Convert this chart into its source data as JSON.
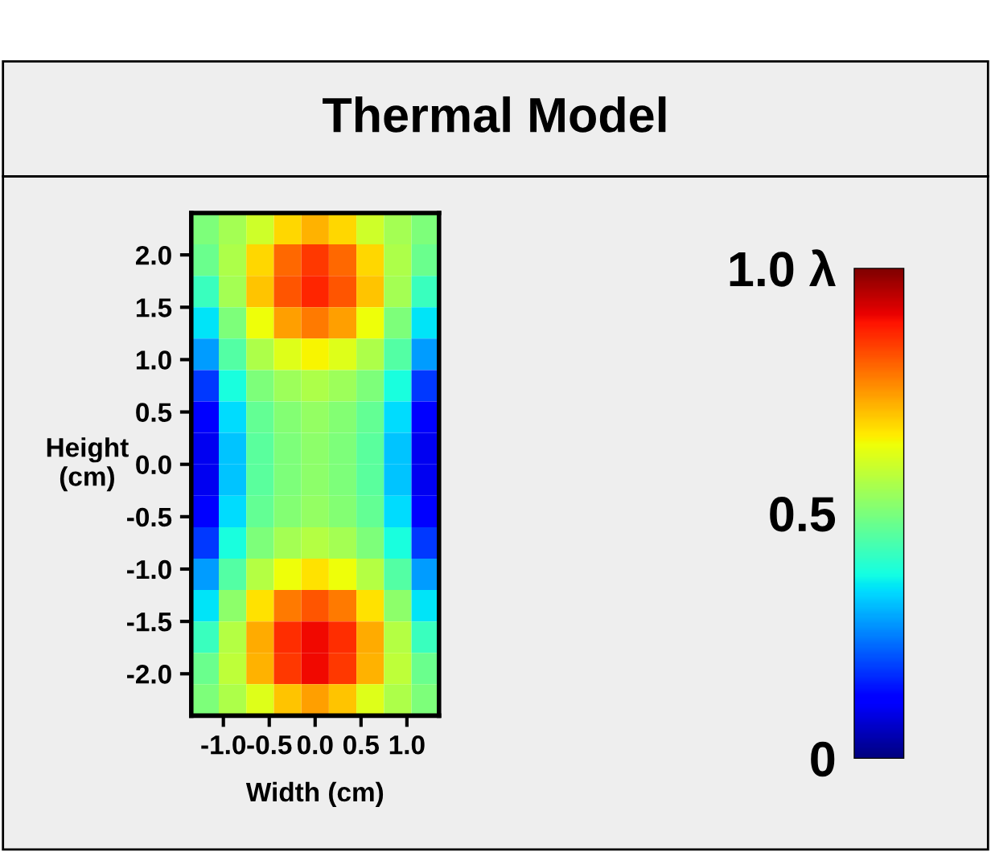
{
  "chart_data": {
    "type": "heatmap",
    "title": "Thermal Model",
    "xlabel": "Width (cm)",
    "ylabel": "Height\n(cm)",
    "x": [
      -1.2,
      -0.9,
      -0.6,
      -0.3,
      0.0,
      0.3,
      0.6,
      0.9,
      1.2
    ],
    "y": [
      2.25,
      1.95,
      1.65,
      1.35,
      1.05,
      0.75,
      0.45,
      0.15,
      -0.15,
      -0.45,
      -0.75,
      -1.05,
      -1.35,
      -1.65,
      -1.95,
      -2.25
    ],
    "cells": [
      [
        0.5,
        0.55,
        0.6,
        0.68,
        0.72,
        0.68,
        0.6,
        0.55,
        0.5
      ],
      [
        0.48,
        0.56,
        0.68,
        0.8,
        0.85,
        0.8,
        0.68,
        0.56,
        0.48
      ],
      [
        0.42,
        0.55,
        0.7,
        0.82,
        0.87,
        0.82,
        0.7,
        0.55,
        0.42
      ],
      [
        0.35,
        0.5,
        0.64,
        0.74,
        0.78,
        0.74,
        0.64,
        0.5,
        0.35
      ],
      [
        0.28,
        0.45,
        0.56,
        0.62,
        0.65,
        0.62,
        0.56,
        0.45,
        0.28
      ],
      [
        0.18,
        0.38,
        0.5,
        0.54,
        0.56,
        0.54,
        0.5,
        0.38,
        0.18
      ],
      [
        0.12,
        0.34,
        0.47,
        0.51,
        0.53,
        0.51,
        0.47,
        0.34,
        0.12
      ],
      [
        0.1,
        0.32,
        0.46,
        0.5,
        0.52,
        0.5,
        0.46,
        0.32,
        0.1
      ],
      [
        0.1,
        0.32,
        0.46,
        0.5,
        0.52,
        0.5,
        0.46,
        0.32,
        0.1
      ],
      [
        0.12,
        0.34,
        0.47,
        0.51,
        0.53,
        0.51,
        0.47,
        0.34,
        0.12
      ],
      [
        0.18,
        0.38,
        0.5,
        0.55,
        0.57,
        0.55,
        0.5,
        0.38,
        0.18
      ],
      [
        0.28,
        0.45,
        0.57,
        0.64,
        0.67,
        0.64,
        0.57,
        0.45,
        0.28
      ],
      [
        0.35,
        0.52,
        0.67,
        0.78,
        0.82,
        0.78,
        0.67,
        0.52,
        0.35
      ],
      [
        0.42,
        0.57,
        0.73,
        0.86,
        0.9,
        0.86,
        0.73,
        0.57,
        0.42
      ],
      [
        0.48,
        0.58,
        0.72,
        0.85,
        0.9,
        0.85,
        0.72,
        0.58,
        0.48
      ],
      [
        0.5,
        0.56,
        0.62,
        0.7,
        0.74,
        0.7,
        0.62,
        0.56,
        0.5
      ]
    ],
    "xlim": [
      -1.35,
      1.35
    ],
    "ylim": [
      -2.4,
      2.4
    ],
    "xticks": [
      {
        "value": -1.0,
        "label": "-1.0"
      },
      {
        "value": -0.5,
        "label": "-0.5"
      },
      {
        "value": 0.0,
        "label": "0.0"
      },
      {
        "value": 0.5,
        "label": "0.5"
      },
      {
        "value": 1.0,
        "label": "1.0"
      }
    ],
    "yticks": [
      {
        "value": -2.0,
        "label": "-2.0"
      },
      {
        "value": -1.5,
        "label": "-1.5"
      },
      {
        "value": -1.0,
        "label": "-1.0"
      },
      {
        "value": -0.5,
        "label": "-0.5"
      },
      {
        "value": 0.0,
        "label": "0.0"
      },
      {
        "value": 0.5,
        "label": "0.5"
      },
      {
        "value": 1.0,
        "label": "1.0"
      },
      {
        "value": 1.5,
        "label": "1.5"
      },
      {
        "value": 2.0,
        "label": "2.0"
      }
    ],
    "clim": [
      0,
      1.0
    ],
    "cticks": [
      0,
      0.5,
      {
        "value": 1.0,
        "label": "1.0 λ"
      }
    ],
    "grid": false
  }
}
